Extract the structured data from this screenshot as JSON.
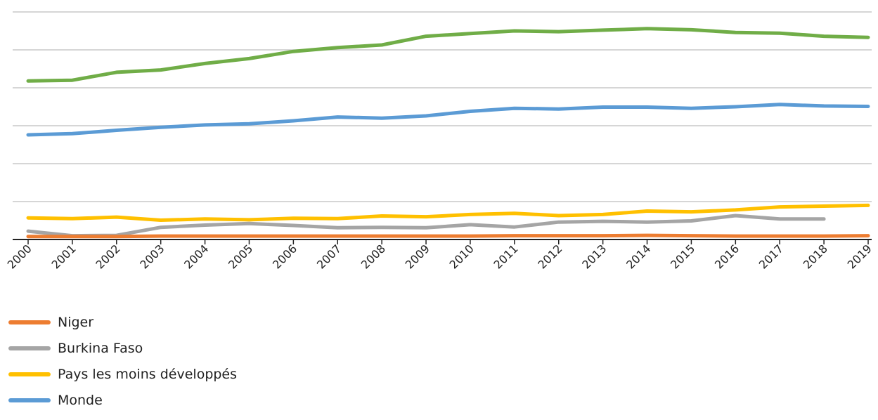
{
  "chart_data": {
    "type": "line",
    "title": "",
    "xlabel": "",
    "ylabel": "",
    "ylim": [
      0,
      60
    ],
    "x": [
      "2000",
      "2001",
      "2002",
      "2003",
      "2004",
      "2005",
      "2006",
      "2007",
      "2008",
      "2009",
      "2010",
      "2011",
      "2012",
      "2013",
      "2014",
      "2015",
      "2016",
      "2017",
      "2018",
      "2019"
    ],
    "grid": true,
    "legend_position": "bottom-left",
    "series": [
      {
        "name": "Niger",
        "color": "#ed7d31",
        "values": [
          0.8,
          0.8,
          0.8,
          0.9,
          0.9,
          0.9,
          0.9,
          0.9,
          0.9,
          0.9,
          0.9,
          1.0,
          1.0,
          1.0,
          1.1,
          1.0,
          0.9,
          0.9,
          0.9,
          1.0
        ]
      },
      {
        "name": "Burkina Faso",
        "color": "#a5a5a5",
        "values": [
          2.2,
          1.0,
          1.1,
          3.2,
          3.8,
          4.2,
          3.7,
          3.1,
          3.2,
          3.1,
          3.9,
          3.3,
          4.6,
          4.8,
          4.6,
          4.9,
          6.3,
          5.4,
          5.4,
          null
        ]
      },
      {
        "name": "Pays les moins développés",
        "color": "#ffc000",
        "values": [
          5.7,
          5.5,
          5.9,
          5.1,
          5.4,
          5.2,
          5.6,
          5.5,
          6.2,
          6.0,
          6.6,
          6.9,
          6.3,
          6.6,
          7.5,
          7.3,
          7.8,
          8.6,
          8.8,
          9.0
        ]
      },
      {
        "name": "Monde",
        "color": "#5b9bd5",
        "values": [
          27.6,
          27.9,
          28.8,
          29.6,
          30.2,
          30.5,
          31.3,
          32.3,
          32.0,
          32.6,
          33.8,
          34.6,
          34.4,
          34.9,
          34.9,
          34.6,
          35.0,
          35.6,
          35.2,
          35.1
        ]
      },
      {
        "name": "",
        "color": "#70ad47",
        "values": [
          41.8,
          42.0,
          44.1,
          44.7,
          46.4,
          47.7,
          49.6,
          50.6,
          51.3,
          53.6,
          54.3,
          55.0,
          54.8,
          55.2,
          55.6,
          55.3,
          54.6,
          54.4,
          53.6,
          53.3
        ]
      }
    ]
  },
  "legend": {
    "items": [
      {
        "label": "Niger",
        "color": "#ed7d31"
      },
      {
        "label": "Burkina Faso",
        "color": "#a5a5a5"
      },
      {
        "label": "Pays les moins développés",
        "color": "#ffc000"
      },
      {
        "label": "Monde",
        "color": "#5b9bd5"
      }
    ]
  }
}
